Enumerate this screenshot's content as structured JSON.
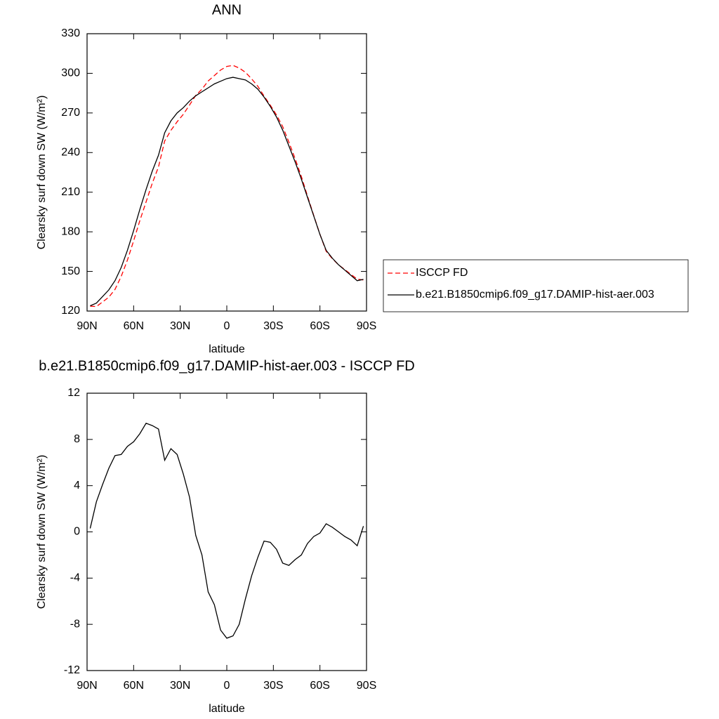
{
  "chart_data": [
    {
      "type": "line",
      "title": "ANN",
      "x_label": "latitude",
      "y_label": "Clearsky surf down SW (W/m²)",
      "x": [
        88,
        84,
        80,
        76,
        72,
        68,
        64,
        60,
        56,
        52,
        48,
        44,
        40,
        36,
        32,
        28,
        24,
        20,
        16,
        12,
        8,
        4,
        0,
        -4,
        -8,
        -12,
        -16,
        -20,
        -24,
        -28,
        -32,
        -36,
        -40,
        -44,
        -48,
        -52,
        -56,
        -60,
        -64,
        -68,
        -72,
        -76,
        -80,
        -84,
        -88
      ],
      "xlim": [
        90,
        -90
      ],
      "xticks": [
        {
          "value": 90,
          "label": "90N"
        },
        {
          "value": 60,
          "label": "60N"
        },
        {
          "value": 30,
          "label": "30N"
        },
        0,
        {
          "value": -30,
          "label": "30S"
        },
        {
          "value": -60,
          "label": "60S"
        },
        {
          "value": -90,
          "label": "90S"
        }
      ],
      "ylim": [
        120,
        330
      ],
      "yticks": [
        120,
        150,
        180,
        210,
        240,
        270,
        300,
        330
      ],
      "legend": "right",
      "series": [
        {
          "name": "ISCCP FD",
          "color": "#ff0000",
          "line_style": "dashed",
          "values": [
            123.7,
            123.4,
            126.9,
            130.5,
            136.4,
            146.3,
            158.6,
            173.2,
            188.5,
            202.6,
            216.8,
            229.1,
            248.8,
            256.8,
            263.3,
            269,
            276,
            283.3,
            288,
            294.2,
            298.3,
            302.5,
            305.2,
            306,
            304,
            300.8,
            295.8,
            290.2,
            282.8,
            275.9,
            268.5,
            259.7,
            247.9,
            235.4,
            222,
            207,
            192.4,
            178.1,
            165.3,
            159.6,
            155,
            151.4,
            147.7,
            144.2,
            143.5
          ]
        },
        {
          "name": "b.e21.B1850cmip6.f09_g17.DAMIP-hist-aer.003",
          "color": "#000000",
          "line_style": "solid",
          "values": [
            124,
            126,
            131,
            136,
            143,
            153,
            166,
            181,
            197,
            212,
            226,
            238,
            255,
            264,
            270,
            274,
            279,
            283,
            286,
            289,
            292,
            294,
            296,
            297,
            296,
            295,
            292,
            288,
            282,
            275,
            267,
            257,
            245,
            233,
            220,
            206,
            192,
            178,
            166,
            160,
            155,
            151,
            147,
            143,
            144
          ]
        }
      ]
    },
    {
      "type": "line",
      "title": "b.e21.B1850cmip6.f09_g17.DAMIP-hist-aer.003 - ISCCP FD",
      "x_label": "latitude",
      "y_label": "Clearsky surf down SW (W/m²)",
      "x": [
        88,
        84,
        80,
        76,
        72,
        68,
        64,
        60,
        56,
        52,
        48,
        44,
        40,
        36,
        32,
        28,
        24,
        20,
        16,
        12,
        8,
        4,
        0,
        -4,
        -8,
        -12,
        -16,
        -20,
        -24,
        -28,
        -32,
        -36,
        -40,
        -44,
        -48,
        -52,
        -56,
        -60,
        -64,
        -68,
        -72,
        -76,
        -80,
        -84,
        -88
      ],
      "xlim": [
        90,
        -90
      ],
      "xticks": [
        {
          "value": 90,
          "label": "90N"
        },
        {
          "value": 60,
          "label": "60N"
        },
        {
          "value": 30,
          "label": "30N"
        },
        0,
        {
          "value": -30,
          "label": "30S"
        },
        {
          "value": -60,
          "label": "60S"
        },
        {
          "value": -90,
          "label": "90S"
        }
      ],
      "ylim": [
        -12,
        12
      ],
      "yticks": [
        -12,
        -8,
        -4,
        0,
        4,
        8,
        12
      ],
      "series": [
        {
          "color": "#000000",
          "line_style": "solid",
          "values": [
            0.3,
            2.6,
            4.1,
            5.5,
            6.6,
            6.7,
            7.4,
            7.8,
            8.5,
            9.4,
            9.2,
            8.9,
            6.2,
            7.2,
            6.7,
            5.0,
            3.0,
            -0.3,
            -2,
            -5.2,
            -6.3,
            -8.5,
            -9.2,
            -9.0,
            -8.0,
            -5.8,
            -3.8,
            -2.2,
            -0.8,
            -0.9,
            -1.5,
            -2.7,
            -2.9,
            -2.4,
            -2.0,
            -1.0,
            -0.4,
            -0.1,
            0.7,
            0.4,
            0.0,
            -0.4,
            -0.7,
            -1.2,
            0.5
          ]
        }
      ]
    }
  ]
}
